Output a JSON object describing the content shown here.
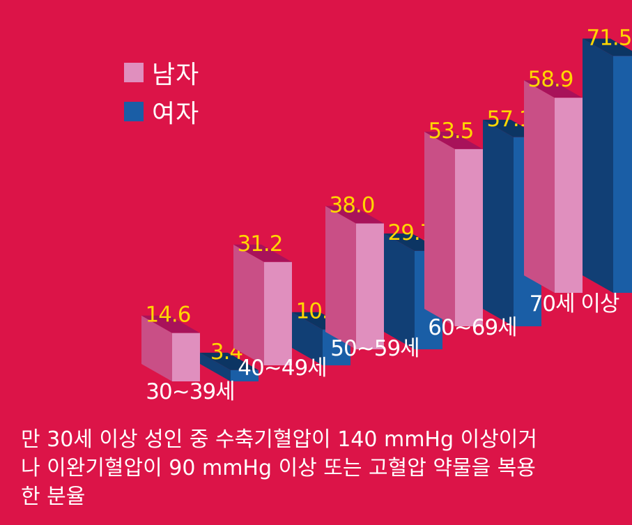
{
  "legend": {
    "male_label": "남자",
    "female_label": "여자"
  },
  "colors": {
    "background": "#dc1448",
    "male_front": "#e08fbe",
    "male_side": "#c94f86",
    "male_top": "#a8125a",
    "female_front": "#1a5ea6",
    "female_side": "#113f75",
    "female_top": "#0c3563",
    "value_label": "#ffd700",
    "category_label": "#ffffff"
  },
  "footnote": [
    "만 30세 이상 성인 중 수축기혈압이 140 mmHg 이상이거",
    "나 이완기혈압이 90 mmHg 이상 또는 고혈압 약물을 복용",
    "한 분율"
  ],
  "chart_data": {
    "type": "bar",
    "categories": [
      "30~39세",
      "40~49세",
      "50~59세",
      "60~69세",
      "70세 이상"
    ],
    "series": [
      {
        "name": "남자",
        "values": [
          14.6,
          31.2,
          38.0,
          53.5,
          58.9
        ]
      },
      {
        "name": "여자",
        "values": [
          3.4,
          10.8,
          29.7,
          57.1,
          71.5
        ]
      }
    ],
    "value_labels": {
      "male": [
        "14.6",
        "31.2",
        "38.0",
        "53.5",
        "58.9"
      ],
      "female": [
        "3.4",
        "10.8",
        "29.7",
        "57.1",
        "71.5"
      ]
    },
    "style": "3d-clustered",
    "ylim": [
      0,
      75
    ],
    "grid": false,
    "legend_position": "top-left"
  }
}
